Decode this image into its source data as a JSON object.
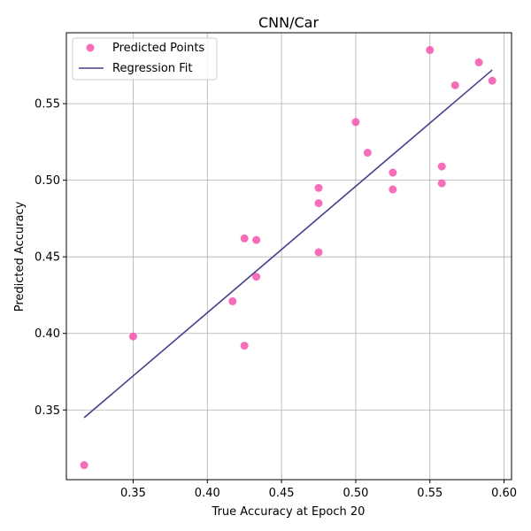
{
  "chart_data": {
    "type": "scatter",
    "title": "CNN/Car",
    "xlabel": "True Accuracy at Epoch 20",
    "ylabel": "Predicted Accuracy",
    "xlim": [
      0.305,
      0.605
    ],
    "ylim": [
      0.3045,
      0.5963
    ],
    "xticks": [
      0.35,
      0.4,
      0.45,
      0.5,
      0.55,
      0.6
    ],
    "yticks": [
      0.35,
      0.4,
      0.45,
      0.5,
      0.55
    ],
    "xtick_labels": [
      "0.35",
      "0.40",
      "0.45",
      "0.50",
      "0.55",
      "0.60"
    ],
    "ytick_labels": [
      "0.35",
      "0.40",
      "0.45",
      "0.50",
      "0.55"
    ],
    "grid": true,
    "legend_position": "upper-left",
    "series": [
      {
        "name": "Predicted Points",
        "kind": "scatter",
        "color": "#f454ad",
        "points": [
          [
            0.317,
            0.314
          ],
          [
            0.35,
            0.398
          ],
          [
            0.417,
            0.421
          ],
          [
            0.425,
            0.462
          ],
          [
            0.425,
            0.392
          ],
          [
            0.433,
            0.461
          ],
          [
            0.433,
            0.437
          ],
          [
            0.475,
            0.495
          ],
          [
            0.475,
            0.485
          ],
          [
            0.475,
            0.453
          ],
          [
            0.5,
            0.538
          ],
          [
            0.508,
            0.518
          ],
          [
            0.525,
            0.505
          ],
          [
            0.525,
            0.494
          ],
          [
            0.55,
            0.585
          ],
          [
            0.558,
            0.509
          ],
          [
            0.558,
            0.498
          ],
          [
            0.567,
            0.562
          ],
          [
            0.583,
            0.577
          ],
          [
            0.592,
            0.565
          ]
        ]
      },
      {
        "name": "Regression Fit",
        "kind": "line",
        "color": "#483d8b",
        "points": [
          [
            0.317,
            0.345
          ],
          [
            0.592,
            0.572
          ]
        ]
      }
    ]
  }
}
